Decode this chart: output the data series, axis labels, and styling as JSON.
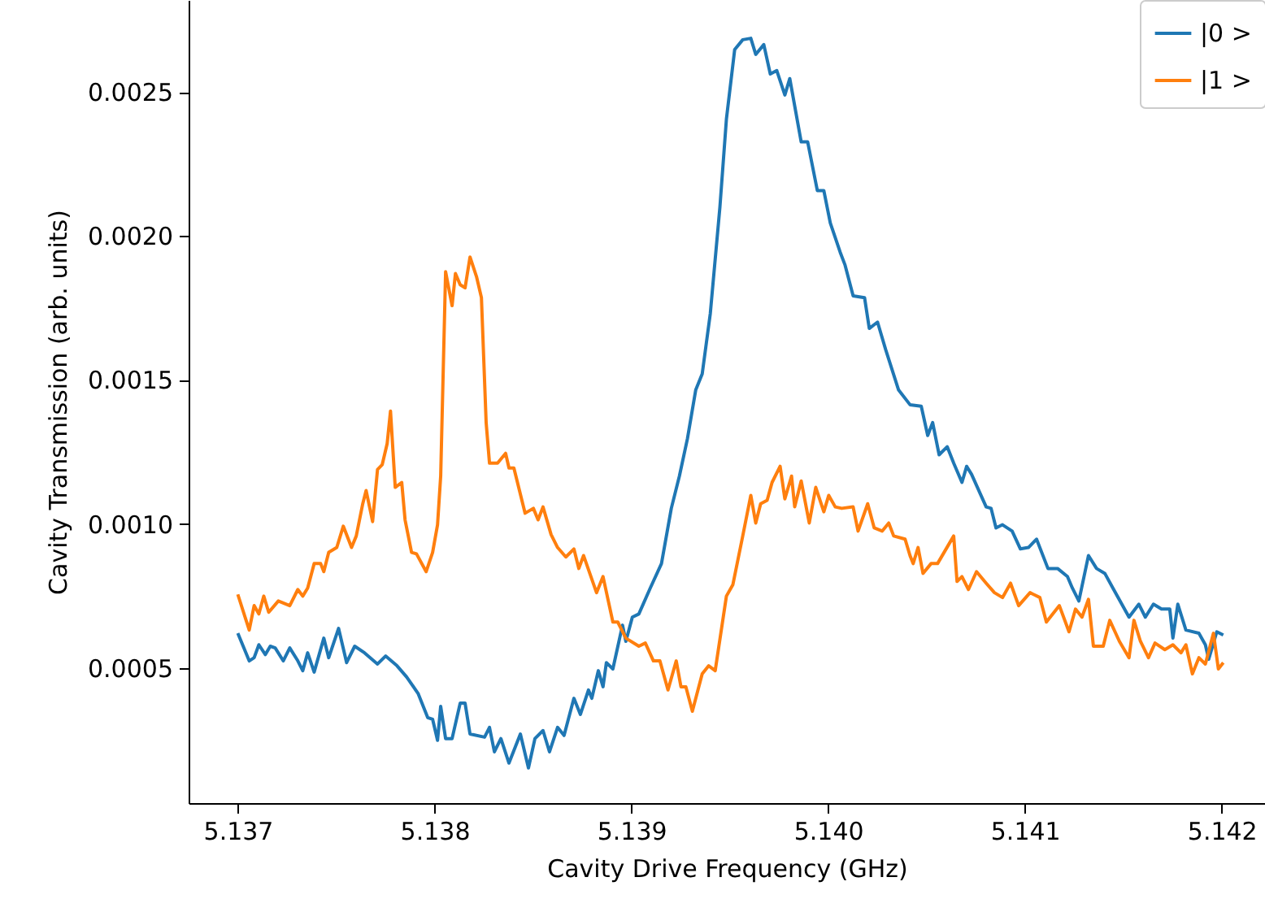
{
  "chart_data": {
    "type": "line",
    "xlabel": "Cavity Drive Frequency (GHz)",
    "ylabel": "Cavity Transmission (arb. units)",
    "xlim": [
      5.13675,
      5.14222
    ],
    "ylim": [
      3e-05,
      0.00282
    ],
    "xticks": [
      5.137,
      5.138,
      5.139,
      {
        "value": 5.14,
        "label": "5.140"
      },
      5.141,
      5.142
    ],
    "yticks": [
      0.0005,
      {
        "value": 0.001,
        "label": "0.0010"
      },
      0.0015,
      {
        "value": 0.002,
        "label": "0.0020"
      },
      0.0025
    ],
    "grid": false,
    "legend": "top right",
    "marker": "none",
    "line_style": "solid",
    "series": [
      {
        "name": "|0 >",
        "color": "#1f77b4",
        "x": [
          5.137,
          5.137058,
          5.137083,
          5.137107,
          5.13714,
          5.137165,
          5.13719,
          5.137231,
          5.137264,
          5.137305,
          5.13733,
          5.137355,
          5.137388,
          5.137437,
          5.137462,
          5.137512,
          5.137553,
          5.137594,
          5.137644,
          5.13771,
          5.137751,
          5.137809,
          5.137858,
          5.137916,
          5.137965,
          5.13799,
          5.138015,
          5.138031,
          5.138056,
          5.138089,
          5.13813,
          5.138155,
          5.13818,
          5.138254,
          5.138279,
          5.138304,
          5.138337,
          5.138378,
          5.138436,
          5.138477,
          5.13851,
          5.138551,
          5.138584,
          5.138625,
          5.138658,
          5.138708,
          5.138741,
          5.138782,
          5.138799,
          5.138832,
          5.138856,
          5.138873,
          5.138906,
          5.138955,
          5.138972,
          5.139005,
          5.139038,
          5.139096,
          5.139153,
          5.139203,
          5.139244,
          5.139285,
          5.139327,
          5.13936,
          5.139401,
          5.13945,
          5.139483,
          5.139525,
          5.139566,
          5.139607,
          5.139632,
          5.139673,
          5.139706,
          5.139739,
          5.13978,
          5.139805,
          5.139863,
          5.139896,
          5.139945,
          5.139978,
          5.140011,
          5.140061,
          5.140086,
          5.140127,
          5.140185,
          5.140209,
          5.140251,
          5.140292,
          5.140358,
          5.140416,
          5.140473,
          5.140506,
          5.140531,
          5.140564,
          5.140605,
          5.140638,
          5.14068,
          5.140704,
          5.140729,
          5.140803,
          5.140828,
          5.140853,
          5.140886,
          5.140935,
          5.140977,
          5.141018,
          5.141059,
          5.141117,
          5.141166,
          5.141216,
          5.141241,
          5.141274,
          5.141323,
          5.141364,
          5.141406,
          5.141447,
          5.141529,
          5.141579,
          5.141612,
          5.141653,
          5.141694,
          5.141736,
          5.141752,
          5.141777,
          5.141818,
          5.141884,
          5.141917,
          5.141934,
          5.141975,
          5.142008
        ],
        "values": [
          0.00062,
          0.000524,
          0.000535,
          0.00058,
          0.000546,
          0.000575,
          0.000569,
          0.000524,
          0.000569,
          0.000524,
          0.00049,
          0.000552,
          0.000485,
          0.000603,
          0.000535,
          0.000637,
          0.000518,
          0.000575,
          0.000552,
          0.000513,
          0.000541,
          0.000507,
          0.000468,
          0.000411,
          0.000327,
          0.000321,
          0.000248,
          0.000366,
          0.000254,
          0.000254,
          0.000377,
          0.000377,
          0.00027,
          0.000259,
          0.000293,
          0.000208,
          0.000254,
          0.000169,
          0.00027,
          0.000152,
          0.000254,
          0.000282,
          0.000208,
          0.000293,
          0.000265,
          0.000394,
          0.000338,
          0.000423,
          0.000394,
          0.00049,
          0.000434,
          0.000518,
          0.000496,
          0.000648,
          0.000592,
          0.000676,
          0.000687,
          0.000777,
          0.000862,
          0.001054,
          0.001166,
          0.001296,
          0.001465,
          0.001521,
          0.00173,
          0.002101,
          0.002406,
          0.002648,
          0.002682,
          0.002687,
          0.002631,
          0.002665,
          0.002563,
          0.002575,
          0.00249,
          0.002547,
          0.002327,
          0.002327,
          0.002158,
          0.002158,
          0.002045,
          0.001944,
          0.001899,
          0.001792,
          0.001786,
          0.001679,
          0.001701,
          0.001606,
          0.001465,
          0.001414,
          0.001409,
          0.001307,
          0.001352,
          0.00124,
          0.001268,
          0.001211,
          0.001144,
          0.0012,
          0.001172,
          0.001059,
          0.001054,
          0.000986,
          0.000997,
          0.000975,
          0.000913,
          0.000918,
          0.000947,
          0.000845,
          0.000845,
          0.000817,
          0.000777,
          0.000732,
          0.00089,
          0.000845,
          0.000828,
          0.000777,
          0.000676,
          0.000721,
          0.000676,
          0.000721,
          0.000704,
          0.000704,
          0.000603,
          0.000721,
          0.000631,
          0.00062,
          0.00058,
          0.00053,
          0.000625,
          0.000614
        ]
      },
      {
        "name": "|1 >",
        "color": "#ff7f0e",
        "x": [
          5.137,
          5.137058,
          5.137083,
          5.137107,
          5.137132,
          5.137157,
          5.137206,
          5.137264,
          5.137305,
          5.13733,
          5.137355,
          5.137388,
          5.137421,
          5.137437,
          5.137462,
          5.137503,
          5.137536,
          5.137578,
          5.137602,
          5.137635,
          5.137652,
          5.137685,
          5.13771,
          5.137734,
          5.137759,
          5.137776,
          5.1378,
          5.137833,
          5.13785,
          5.137883,
          5.137908,
          5.137957,
          5.13799,
          5.138015,
          5.138031,
          5.138056,
          5.138089,
          5.138106,
          5.13813,
          5.138155,
          5.13818,
          5.138213,
          5.138238,
          5.138262,
          5.138279,
          5.13832,
          5.138361,
          5.138378,
          5.138403,
          5.13846,
          5.138502,
          5.138526,
          5.138551,
          5.138592,
          5.138625,
          5.138667,
          5.138708,
          5.138733,
          5.138757,
          5.138823,
          5.138856,
          5.138906,
          5.138931,
          5.138972,
          5.139038,
          5.139071,
          5.139112,
          5.139145,
          5.139186,
          5.139228,
          5.139252,
          5.139277,
          5.13931,
          5.13936,
          5.139393,
          5.139426,
          5.139483,
          5.139516,
          5.139566,
          5.139607,
          5.139632,
          5.139657,
          5.13969,
          5.139715,
          5.139756,
          5.13978,
          5.139814,
          5.13983,
          5.139863,
          5.139904,
          5.139937,
          5.139978,
          5.140003,
          5.140036,
          5.140069,
          5.140127,
          5.140152,
          5.140201,
          5.140234,
          5.140275,
          5.140308,
          5.140333,
          5.140391,
          5.140416,
          5.140432,
          5.140457,
          5.140482,
          5.140523,
          5.140556,
          5.140638,
          5.140655,
          5.14068,
          5.140713,
          5.140754,
          5.140803,
          5.140845,
          5.140886,
          5.140927,
          5.140968,
          5.141026,
          5.141076,
          5.141109,
          5.141175,
          5.141224,
          5.141257,
          5.14129,
          5.141323,
          5.141348,
          5.141398,
          5.141431,
          5.14148,
          5.141529,
          5.141554,
          5.141587,
          5.141628,
          5.141661,
          5.141711,
          5.141752,
          5.141793,
          5.141818,
          5.141851,
          5.141884,
          5.141917,
          5.141958,
          5.141983,
          5.142008
        ],
        "values": [
          0.000755,
          0.000631,
          0.000716,
          0.000687,
          0.000749,
          0.000693,
          0.000732,
          0.000716,
          0.000772,
          0.000749,
          0.000777,
          0.000862,
          0.000862,
          0.000834,
          0.000901,
          0.000918,
          0.000992,
          0.000918,
          0.000958,
          0.00107,
          0.001116,
          0.001008,
          0.001189,
          0.001206,
          0.001279,
          0.001392,
          0.001127,
          0.001144,
          0.001014,
          0.000901,
          0.000896,
          0.000834,
          0.000901,
          0.000997,
          0.001166,
          0.001876,
          0.001758,
          0.00187,
          0.001831,
          0.00182,
          0.001927,
          0.001859,
          0.001786,
          0.001352,
          0.001211,
          0.001211,
          0.001245,
          0.001194,
          0.001194,
          0.001037,
          0.001054,
          0.001014,
          0.001059,
          0.000963,
          0.000918,
          0.000885,
          0.000913,
          0.000845,
          0.00089,
          0.000761,
          0.000817,
          0.000659,
          0.000659,
          0.000603,
          0.000575,
          0.000586,
          0.000524,
          0.000524,
          0.000423,
          0.000524,
          0.000434,
          0.000434,
          0.000349,
          0.000479,
          0.000507,
          0.00049,
          0.000749,
          0.000789,
          0.000958,
          0.001099,
          0.001003,
          0.00107,
          0.001082,
          0.001144,
          0.0012,
          0.001087,
          0.001166,
          0.001059,
          0.001149,
          0.001003,
          0.001127,
          0.001042,
          0.001099,
          0.001059,
          0.001054,
          0.001059,
          0.000975,
          0.00107,
          0.000986,
          0.000975,
          0.001003,
          0.000958,
          0.000947,
          0.00089,
          0.000862,
          0.000918,
          0.000828,
          0.000862,
          0.000862,
          0.000958,
          0.0008,
          0.000817,
          0.000772,
          0.000834,
          0.000794,
          0.000761,
          0.000744,
          0.000794,
          0.000716,
          0.000761,
          0.000744,
          0.000659,
          0.000716,
          0.000625,
          0.000704,
          0.000676,
          0.000738,
          0.000575,
          0.000575,
          0.000665,
          0.000592,
          0.000535,
          0.000665,
          0.000592,
          0.000535,
          0.000586,
          0.000563,
          0.00058,
          0.000552,
          0.00058,
          0.000479,
          0.000535,
          0.000513,
          0.00062,
          0.000496,
          0.000518
        ]
      }
    ]
  }
}
